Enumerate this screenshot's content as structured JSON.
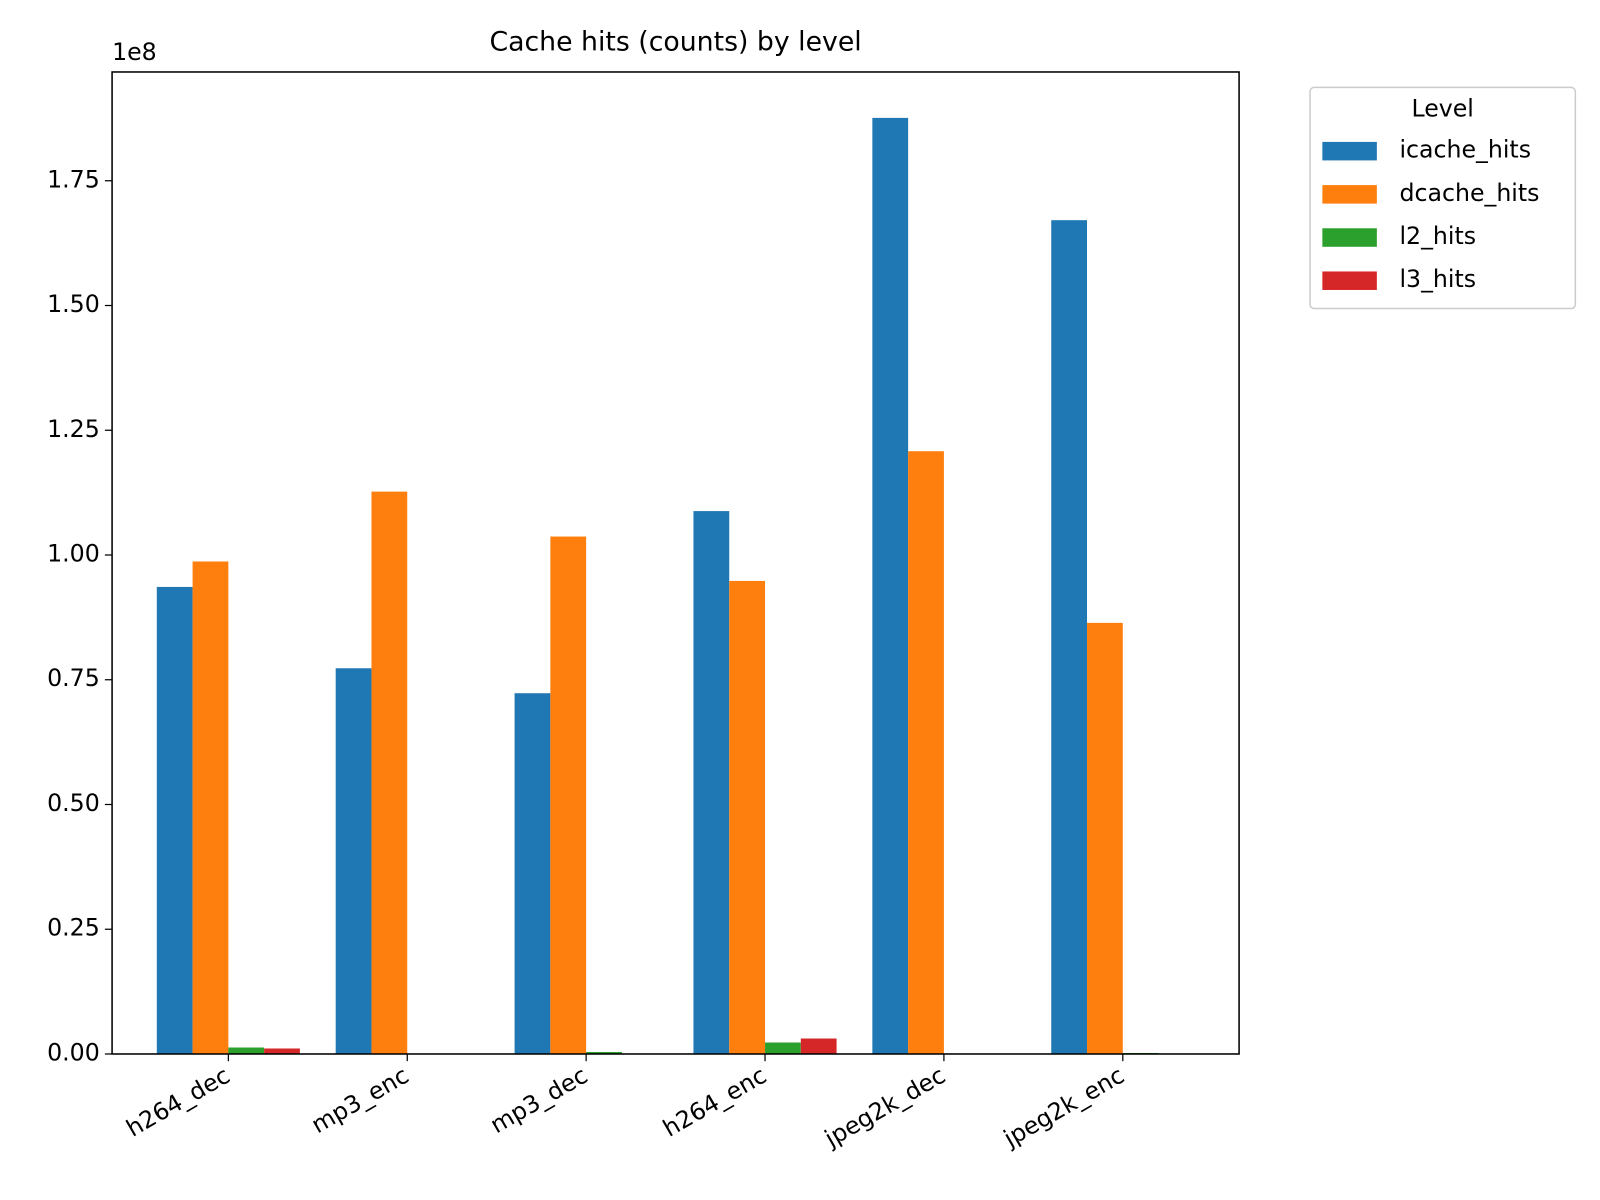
{
  "chart_data": {
    "type": "bar",
    "title": "Cache hits (counts) by level",
    "categories": [
      "h264_dec",
      "mp3_enc",
      "mp3_dec",
      "h264_enc",
      "jpeg2k_dec",
      "jpeg2k_enc"
    ],
    "series": [
      {
        "name": "icache_hits",
        "color": "#1f77b4",
        "values": [
          93600000,
          77300000,
          72300000,
          108800000,
          187600000,
          167100000
        ]
      },
      {
        "name": "dcache_hits",
        "color": "#ff7f0e",
        "values": [
          98700000,
          112700000,
          103700000,
          94800000,
          120800000,
          86400000
        ]
      },
      {
        "name": "l2_hits",
        "color": "#2ca02c",
        "values": [
          1300000,
          0,
          400000,
          2300000,
          0,
          200000
        ]
      },
      {
        "name": "l3_hits",
        "color": "#d62728",
        "values": [
          1100000,
          0,
          0,
          3100000,
          0,
          0
        ]
      }
    ],
    "ylim": [
      0,
      196800000
    ],
    "yticks": [
      {
        "value": 0,
        "label": "0.00"
      },
      {
        "value": 25000000,
        "label": "0.25"
      },
      {
        "value": 50000000,
        "label": "0.50"
      },
      {
        "value": 75000000,
        "label": "0.75"
      },
      {
        "value": 100000000,
        "label": "1.00"
      },
      {
        "value": 125000000,
        "label": "1.25"
      },
      {
        "value": 150000000,
        "label": "1.50"
      },
      {
        "value": 175000000,
        "label": "1.75"
      }
    ],
    "y_offset_label": "1e8",
    "legend_title": "Level",
    "legend": "outside upper right",
    "grid": false
  }
}
